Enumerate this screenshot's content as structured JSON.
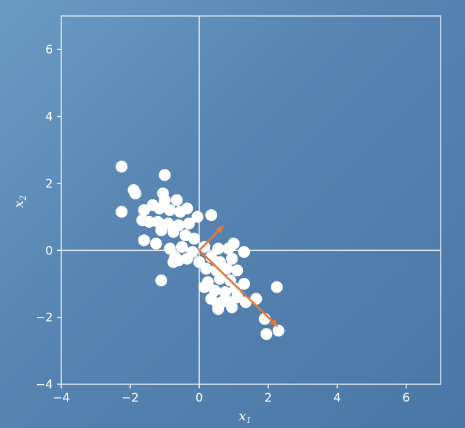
{
  "chart_data": {
    "type": "scatter",
    "xlabel": "x",
    "xlabel_sub": "1",
    "ylabel": "x",
    "ylabel_sub": "2",
    "xlim": [
      -4,
      7
    ],
    "ylim": [
      -4,
      7
    ],
    "xticks": [
      -4,
      -2,
      0,
      2,
      4,
      6
    ],
    "yticks": [
      -4,
      -2,
      0,
      2,
      4,
      6
    ],
    "grid": false,
    "zero_lines": true,
    "point_color": "#ffffff",
    "arrow_color": "#e07b39",
    "points": [
      [
        -2.25,
        2.5
      ],
      [
        -1.0,
        2.25
      ],
      [
        -1.9,
        1.8
      ],
      [
        -1.85,
        1.7
      ],
      [
        -1.05,
        1.7
      ],
      [
        -1.0,
        1.5
      ],
      [
        -0.65,
        1.5
      ],
      [
        -2.25,
        1.15
      ],
      [
        -1.35,
        1.35
      ],
      [
        -1.15,
        1.25
      ],
      [
        -0.35,
        1.25
      ],
      [
        -1.6,
        1.2
      ],
      [
        -0.85,
        1.2
      ],
      [
        -0.55,
        1.15
      ],
      [
        0.35,
        1.05
      ],
      [
        -0.05,
        1.0
      ],
      [
        -1.65,
        0.9
      ],
      [
        -1.45,
        0.85
      ],
      [
        -1.2,
        0.85
      ],
      [
        -0.9,
        0.8
      ],
      [
        -0.6,
        0.75
      ],
      [
        -0.3,
        0.8
      ],
      [
        -1.1,
        0.6
      ],
      [
        -0.75,
        0.55
      ],
      [
        -0.4,
        0.45
      ],
      [
        -0.15,
        0.35
      ],
      [
        -1.6,
        0.3
      ],
      [
        -1.25,
        0.2
      ],
      [
        -0.85,
        0.05
      ],
      [
        -0.5,
        0.1
      ],
      [
        -0.2,
        -0.05
      ],
      [
        0.15,
        0.1
      ],
      [
        0.55,
        0.05
      ],
      [
        0.85,
        0.05
      ],
      [
        1.0,
        0.2
      ],
      [
        1.3,
        -0.05
      ],
      [
        -0.7,
        -0.2
      ],
      [
        -0.6,
        -0.3
      ],
      [
        -0.35,
        -0.25
      ],
      [
        0.0,
        -0.35
      ],
      [
        0.35,
        -0.2
      ],
      [
        0.6,
        -0.35
      ],
      [
        0.95,
        -0.25
      ],
      [
        -0.75,
        -0.35
      ],
      [
        0.2,
        -0.55
      ],
      [
        0.5,
        -0.6
      ],
      [
        0.8,
        -0.55
      ],
      [
        1.1,
        -0.6
      ],
      [
        0.6,
        -0.85
      ],
      [
        0.9,
        -0.9
      ],
      [
        0.25,
        -0.95
      ],
      [
        1.3,
        -1.0
      ],
      [
        -1.1,
        -0.9
      ],
      [
        0.15,
        -1.1
      ],
      [
        0.45,
        -1.2
      ],
      [
        0.75,
        -1.25
      ],
      [
        1.05,
        -1.15
      ],
      [
        0.35,
        -1.45
      ],
      [
        0.65,
        -1.55
      ],
      [
        0.9,
        -1.55
      ],
      [
        1.35,
        -1.55
      ],
      [
        0.55,
        -1.65
      ],
      [
        0.95,
        -1.7
      ],
      [
        1.65,
        -1.45
      ],
      [
        0.55,
        -1.75
      ],
      [
        1.9,
        -2.05
      ],
      [
        2.3,
        -2.4
      ],
      [
        1.95,
        -2.5
      ],
      [
        2.25,
        -1.1
      ],
      [
        1.1,
        -1.4
      ]
    ],
    "arrows": [
      {
        "from": [
          0,
          0
        ],
        "to": [
          2.3,
          -2.3
        ]
      },
      {
        "from": [
          0,
          0
        ],
        "to": [
          0.72,
          0.75
        ]
      }
    ]
  }
}
